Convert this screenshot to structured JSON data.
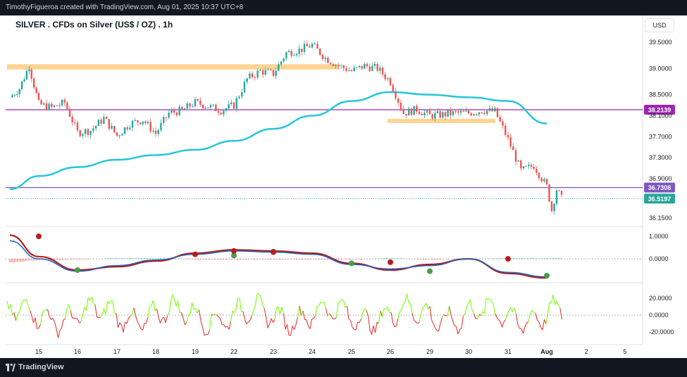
{
  "header": {
    "author_line": "TimothyFigueroa created with TradingView.com, Aug 01, 2025 10:37 UTC+8",
    "symbol_title": "SILVER . CFDs on Silver (US$ / OZ) . 1h",
    "currency": "USD"
  },
  "footer": {
    "brand": "TradingView"
  },
  "colors": {
    "up": "#26a69a",
    "down": "#ef5350",
    "ma": "#26c6da",
    "hline": "#9c27b0",
    "zone": "#ffcc80",
    "last_price": "#26a69a",
    "macd_fast": "#1565c0",
    "macd_slow": "#43a047",
    "macd_slow_down": "#b71c1c",
    "osc_up": "#76ff03",
    "osc_down": "#e53935"
  },
  "chart_data": {
    "type": "candlestick",
    "price_axis_ticks": [
      "39.5000",
      "39.0000",
      "38.5000",
      "38.1000",
      "37.7000",
      "37.3000",
      "36.9000",
      "36.1500"
    ],
    "x_tick_labels": [
      "15",
      "16",
      "17",
      "18",
      "19",
      "22",
      "23",
      "24",
      "25",
      "26",
      "29",
      "30",
      "31",
      "Aug",
      "2",
      "5"
    ],
    "horizontal_levels": [
      {
        "label": "38.2139",
        "value": 38.2139,
        "color": "#9c27b0"
      },
      {
        "label": "36.7308",
        "value": 36.7308,
        "color": "#7e57c2"
      },
      {
        "label": "36.5197",
        "value": 36.5197,
        "color": "#26a69a",
        "kind": "last_price"
      }
    ],
    "zones": [
      {
        "from": 38.98,
        "to": 39.08,
        "start_day": "14",
        "end_day": "24"
      },
      {
        "from": 37.96,
        "to": 38.04,
        "start_day": "26",
        "end_day": "30"
      }
    ],
    "price_path": [
      {
        "x": "14",
        "y": 38.45
      },
      {
        "x": "14",
        "y": 38.62
      },
      {
        "x": "14",
        "y": 39.05
      },
      {
        "x": "15",
        "y": 38.32
      },
      {
        "x": "15",
        "y": 38.25
      },
      {
        "x": "15",
        "y": 38.35
      },
      {
        "x": "16",
        "y": 37.78
      },
      {
        "x": "16",
        "y": 37.82
      },
      {
        "x": "16",
        "y": 38.05
      },
      {
        "x": "17",
        "y": 37.72
      },
      {
        "x": "17",
        "y": 37.95
      },
      {
        "x": "17",
        "y": 38.02
      },
      {
        "x": "18",
        "y": 37.76
      },
      {
        "x": "18",
        "y": 38.15
      },
      {
        "x": "18",
        "y": 38.2
      },
      {
        "x": "19",
        "y": 38.35
      },
      {
        "x": "19",
        "y": 38.28
      },
      {
        "x": "19",
        "y": 38.2
      },
      {
        "x": "22",
        "y": 38.3
      },
      {
        "x": "22",
        "y": 38.8
      },
      {
        "x": "22",
        "y": 38.95
      },
      {
        "x": "23",
        "y": 38.9
      },
      {
        "x": "23",
        "y": 39.3
      },
      {
        "x": "23",
        "y": 39.35
      },
      {
        "x": "24",
        "y": 39.45
      },
      {
        "x": "24",
        "y": 39.2
      },
      {
        "x": "24",
        "y": 39.05
      },
      {
        "x": "25",
        "y": 38.95
      },
      {
        "x": "25",
        "y": 39.05
      },
      {
        "x": "25",
        "y": 39.0
      },
      {
        "x": "26",
        "y": 38.75
      },
      {
        "x": "26",
        "y": 38.15
      },
      {
        "x": "26",
        "y": 38.22
      },
      {
        "x": "29",
        "y": 38.1
      },
      {
        "x": "29",
        "y": 38.12
      },
      {
        "x": "29",
        "y": 38.15
      },
      {
        "x": "30",
        "y": 38.15
      },
      {
        "x": "30",
        "y": 38.2
      },
      {
        "x": "30",
        "y": 38.18
      },
      {
        "x": "31",
        "y": 37.65
      },
      {
        "x": "31",
        "y": 37.05
      },
      {
        "x": "31",
        "y": 37.15
      },
      {
        "x": "Aug",
        "y": 36.75
      },
      {
        "x": "Aug",
        "y": 36.3
      },
      {
        "x": "Aug",
        "y": 36.7
      },
      {
        "x": "Aug",
        "y": 36.52
      }
    ],
    "moving_average": [
      {
        "x": "14",
        "y": 36.7
      },
      {
        "x": "15",
        "y": 36.95
      },
      {
        "x": "16",
        "y": 37.12
      },
      {
        "x": "17",
        "y": 37.26
      },
      {
        "x": "18",
        "y": 37.35
      },
      {
        "x": "19",
        "y": 37.45
      },
      {
        "x": "22",
        "y": 37.62
      },
      {
        "x": "23",
        "y": 37.85
      },
      {
        "x": "24",
        "y": 38.1
      },
      {
        "x": "25",
        "y": 38.38
      },
      {
        "x": "26",
        "y": 38.55
      },
      {
        "x": "29",
        "y": 38.5
      },
      {
        "x": "30",
        "y": 38.45
      },
      {
        "x": "31",
        "y": 38.38
      },
      {
        "x": "Aug",
        "y": 37.95
      }
    ],
    "macd_panel": {
      "ticks": [
        "1.0000",
        "0.0000"
      ],
      "fast": [
        {
          "x": "14",
          "y": 0.8
        },
        {
          "x": "15",
          "y": 0.0
        },
        {
          "x": "16",
          "y": -0.55
        },
        {
          "x": "17",
          "y": -0.3
        },
        {
          "x": "18",
          "y": -0.05
        },
        {
          "x": "19",
          "y": 0.2
        },
        {
          "x": "22",
          "y": 0.35
        },
        {
          "x": "23",
          "y": 0.3
        },
        {
          "x": "24",
          "y": 0.2
        },
        {
          "x": "25",
          "y": -0.25
        },
        {
          "x": "26",
          "y": -0.45
        },
        {
          "x": "29",
          "y": -0.3
        },
        {
          "x": "30",
          "y": 0.0
        },
        {
          "x": "31",
          "y": -0.6
        },
        {
          "x": "Aug",
          "y": -0.8
        }
      ],
      "slow": [
        {
          "x": "14",
          "y": 1.05
        },
        {
          "x": "15",
          "y": 0.1
        },
        {
          "x": "16",
          "y": -0.5
        },
        {
          "x": "17",
          "y": -0.35
        },
        {
          "x": "18",
          "y": -0.1
        },
        {
          "x": "19",
          "y": 0.25
        },
        {
          "x": "22",
          "y": 0.4
        },
        {
          "x": "23",
          "y": 0.35
        },
        {
          "x": "24",
          "y": 0.25
        },
        {
          "x": "25",
          "y": -0.2
        },
        {
          "x": "26",
          "y": -0.5
        },
        {
          "x": "29",
          "y": -0.25
        },
        {
          "x": "30",
          "y": 0.0
        },
        {
          "x": "31",
          "y": -0.65
        },
        {
          "x": "Aug",
          "y": -0.85
        }
      ],
      "cross_markers": [
        {
          "x": "15",
          "y": 1.0,
          "kind": "bear"
        },
        {
          "x": "16",
          "y": -0.5,
          "kind": "bull"
        },
        {
          "x": "19",
          "y": 0.2,
          "kind": "bear"
        },
        {
          "x": "22",
          "y": 0.15,
          "kind": "bull"
        },
        {
          "x": "22",
          "y": 0.35,
          "kind": "bear"
        },
        {
          "x": "23",
          "y": 0.32,
          "kind": "bull"
        },
        {
          "x": "23",
          "y": 0.3,
          "kind": "bear"
        },
        {
          "x": "25",
          "y": -0.2,
          "kind": "bull"
        },
        {
          "x": "26",
          "y": -0.15,
          "kind": "bear"
        },
        {
          "x": "29",
          "y": -0.55,
          "kind": "bull"
        },
        {
          "x": "31",
          "y": 0.0,
          "kind": "bear"
        },
        {
          "x": "Aug",
          "y": -0.75,
          "kind": "bull"
        }
      ]
    },
    "oscillator_panel": {
      "ticks": [
        "20.0000",
        "0.0000",
        "-20.0000"
      ]
    }
  }
}
